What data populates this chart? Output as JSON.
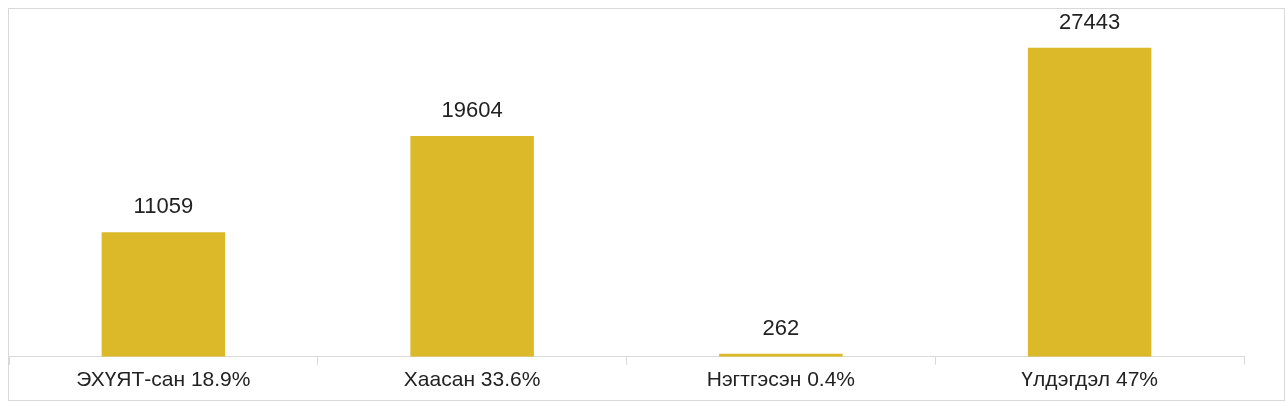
{
  "chart_data": {
    "type": "bar",
    "categories": [
      "ЭХҮЯТ-сан 18.9%",
      "Хаасан 33.6%",
      "Нэгтгэсэн 0.4%",
      "Үлдэгдэл 47%"
    ],
    "values": [
      11059,
      19604,
      262,
      27443
    ],
    "color": "#dbb928",
    "data_labels": true,
    "grid": false,
    "legend": false
  }
}
